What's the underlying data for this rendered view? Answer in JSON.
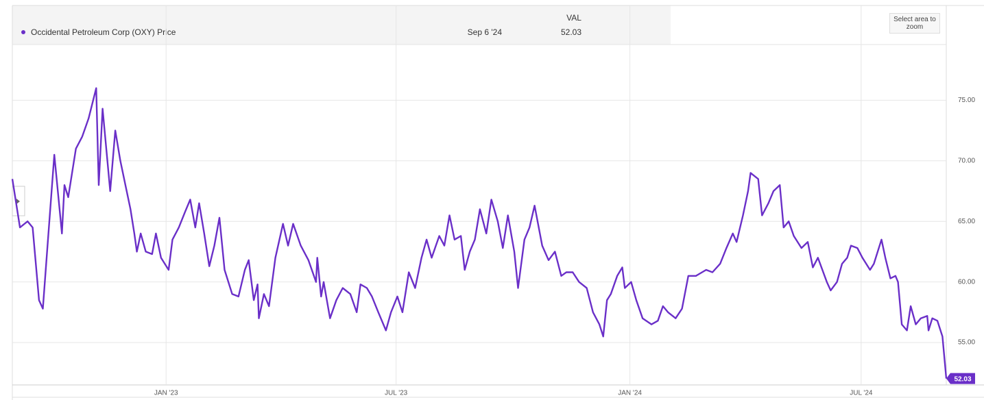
{
  "chart_data": {
    "type": "line",
    "legend": "Occidental Petroleum Corp (OXY) Price",
    "header": {
      "label": "VAL",
      "date": "Sep 6 '24"
    },
    "zoom_button": "Select area to zoom",
    "x": [
      "2022-09-02",
      "2022-09-08",
      "2022-09-14",
      "2022-09-18",
      "2022-09-23",
      "2022-09-26",
      "2022-09-29",
      "2022-10-05",
      "2022-10-11",
      "2022-10-13",
      "2022-10-16",
      "2022-10-22",
      "2022-10-27",
      "2022-11-01",
      "2022-11-07",
      "2022-11-09",
      "2022-11-12",
      "2022-11-18",
      "2022-11-22",
      "2022-11-26",
      "2022-11-30",
      "2022-12-04",
      "2022-12-07",
      "2022-12-09",
      "2022-12-12",
      "2022-12-16",
      "2022-12-21",
      "2022-12-24",
      "2022-12-28",
      "2023-01-03",
      "2023-01-06",
      "2023-01-11",
      "2023-01-16",
      "2023-01-20",
      "2023-01-24",
      "2023-01-27",
      "2023-01-31",
      "2023-02-04",
      "2023-02-08",
      "2023-02-12",
      "2023-02-16",
      "2023-02-22",
      "2023-02-27",
      "2023-03-04",
      "2023-03-07",
      "2023-03-11",
      "2023-03-14",
      "2023-03-15",
      "2023-03-19",
      "2023-03-23",
      "2023-03-28",
      "2023-04-03",
      "2023-04-07",
      "2023-04-11",
      "2023-04-17",
      "2023-04-23",
      "2023-04-29",
      "2023-04-30",
      "2023-05-03",
      "2023-05-05",
      "2023-05-10",
      "2023-05-15",
      "2023-05-20",
      "2023-05-26",
      "2023-05-31",
      "2023-06-03",
      "2023-06-08",
      "2023-06-12",
      "2023-06-17",
      "2023-06-23",
      "2023-06-27",
      "2023-07-02",
      "2023-07-06",
      "2023-07-11",
      "2023-07-16",
      "2023-07-21",
      "2023-07-25",
      "2023-07-29",
      "2023-08-04",
      "2023-08-08",
      "2023-08-12",
      "2023-08-16",
      "2023-08-21",
      "2023-08-24",
      "2023-08-28",
      "2023-09-01",
      "2023-09-05",
      "2023-09-10",
      "2023-09-14",
      "2023-09-19",
      "2023-09-23",
      "2023-09-27",
      "2023-10-02",
      "2023-10-05",
      "2023-10-10",
      "2023-10-14",
      "2023-10-18",
      "2023-10-24",
      "2023-10-29",
      "2023-11-03",
      "2023-11-08",
      "2023-11-12",
      "2023-11-17",
      "2023-11-22",
      "2023-11-28",
      "2023-12-03",
      "2023-12-08",
      "2023-12-11",
      "2023-12-14",
      "2023-12-17",
      "2023-12-22",
      "2023-12-26",
      "2023-12-28",
      "2024-01-02",
      "2024-01-06",
      "2024-01-11",
      "2024-01-18",
      "2024-01-23",
      "2024-01-27",
      "2024-01-31",
      "2024-02-06",
      "2024-02-11",
      "2024-02-16",
      "2024-02-22",
      "2024-03-01",
      "2024-03-06",
      "2024-03-12",
      "2024-03-17",
      "2024-03-22",
      "2024-03-25",
      "2024-03-30",
      "2024-04-03",
      "2024-04-05",
      "2024-04-11",
      "2024-04-14",
      "2024-04-19",
      "2024-04-23",
      "2024-04-28",
      "2024-05-01",
      "2024-05-05",
      "2024-05-09",
      "2024-05-15",
      "2024-05-20",
      "2024-05-24",
      "2024-05-28",
      "2024-06-04",
      "2024-06-07",
      "2024-06-12",
      "2024-06-16",
      "2024-06-20",
      "2024-06-23",
      "2024-06-28",
      "2024-07-02",
      "2024-07-08",
      "2024-07-11",
      "2024-07-17",
      "2024-07-20",
      "2024-07-24",
      "2024-07-28",
      "2024-07-30",
      "2024-08-02",
      "2024-08-06",
      "2024-08-09",
      "2024-08-13",
      "2024-08-17",
      "2024-08-22",
      "2024-08-23",
      "2024-08-26",
      "2024-08-30",
      "2024-09-03",
      "2024-09-06"
    ],
    "series": [
      {
        "name": "Occidental Petroleum Corp (OXY) Price",
        "color": "#6a2fc8",
        "values": [
          68.5,
          64.5,
          65,
          64.5,
          58.5,
          57.8,
          62,
          70.5,
          64,
          68,
          67,
          71,
          72,
          73.5,
          76,
          68,
          74.3,
          67.5,
          72.5,
          70,
          68,
          66,
          64,
          62.5,
          64,
          62.5,
          62.3,
          64,
          62,
          61,
          63.5,
          64.5,
          65.8,
          66.8,
          64.5,
          66.5,
          64,
          61.3,
          63,
          65.3,
          61,
          59,
          58.8,
          61,
          61.8,
          58.5,
          59.8,
          57,
          59,
          58,
          62,
          64.8,
          63,
          64.8,
          63,
          61.8,
          60,
          62,
          58.8,
          60,
          57,
          58.5,
          59.5,
          59,
          57.5,
          59.8,
          59.5,
          58.8,
          57.5,
          56,
          57.5,
          58.8,
          57.5,
          60.8,
          59.5,
          62,
          63.5,
          62,
          63.8,
          63,
          65.5,
          63.5,
          63.8,
          61,
          62.5,
          63.5,
          66,
          64,
          66.8,
          65,
          62.8,
          65.5,
          62.5,
          59.5,
          63.5,
          64.5,
          66.3,
          63,
          61.8,
          62.5,
          60.5,
          60.8,
          60.8,
          60,
          59.5,
          57.5,
          56.5,
          55.5,
          58.5,
          59,
          60.5,
          61.2,
          59.5,
          60,
          58.5,
          57,
          56.5,
          56.8,
          58,
          57.5,
          57,
          57.8,
          60.5,
          60.5,
          61,
          60.8,
          61.5,
          62.8,
          64,
          63.3,
          65.5,
          67.5,
          69,
          68.5,
          65.5,
          66.5,
          67.5,
          68,
          64.5,
          65,
          63.8,
          62.8,
          63.3,
          61.2,
          62,
          60,
          59.3,
          60,
          61.5,
          62,
          63,
          62.8,
          62,
          61,
          61.5,
          63.5,
          62,
          60.3,
          60.5,
          60,
          56.5,
          56,
          58,
          56.5,
          57,
          57.2,
          56,
          57,
          56.8,
          55.5,
          52.03
        ]
      }
    ],
    "xlim": [
      "2022-09-02",
      "2024-09-06"
    ],
    "xticks": [
      {
        "value": "2023-01-01",
        "label": "JAN '23"
      },
      {
        "value": "2023-07-01",
        "label": "JUL '23"
      },
      {
        "value": "2024-01-01",
        "label": "JAN '24"
      },
      {
        "value": "2024-07-01",
        "label": "JUL '24"
      }
    ],
    "ylim": [
      51.5,
      79.6
    ],
    "yticks": [
      {
        "value": 55,
        "label": "55.00"
      },
      {
        "value": 60,
        "label": "60.00"
      },
      {
        "value": 65,
        "label": "65.00"
      },
      {
        "value": 70,
        "label": "70.00"
      },
      {
        "value": 75,
        "label": "75.00"
      }
    ],
    "grid": true
  }
}
